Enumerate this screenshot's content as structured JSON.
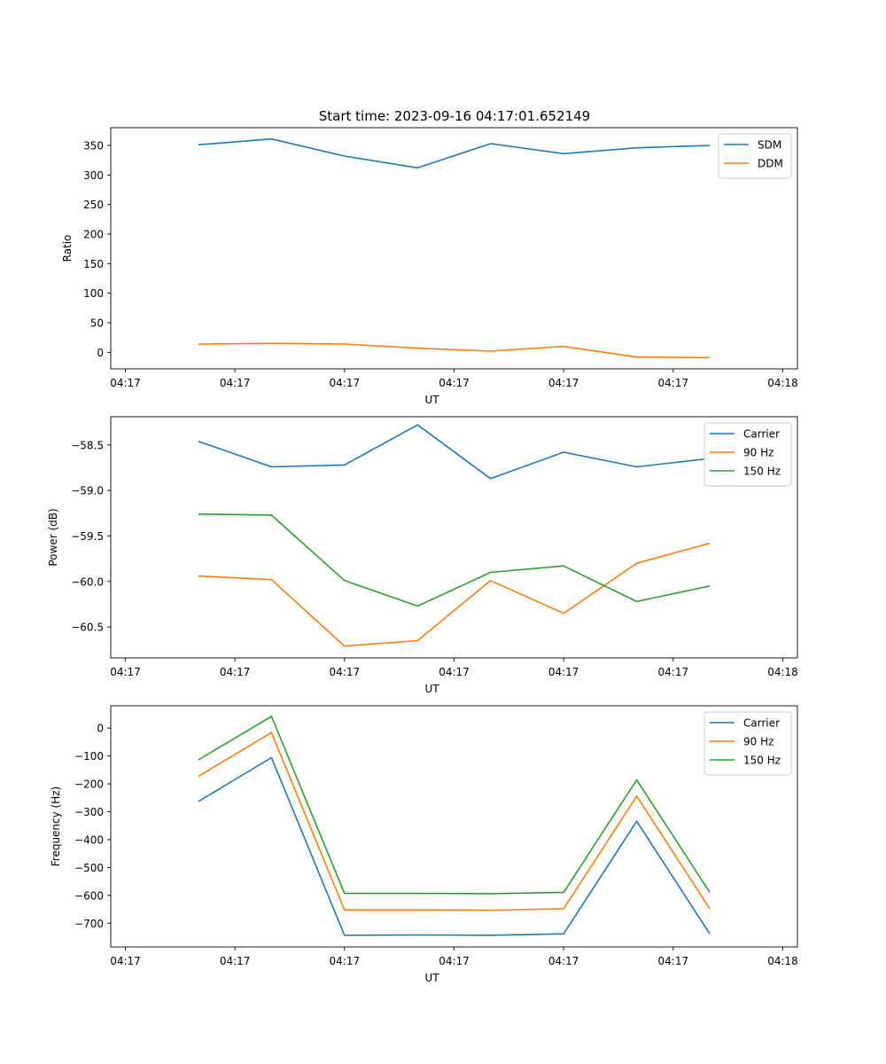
{
  "figure_title": "Start time: 2023-09-16 04:17:01.652149",
  "chart_data": [
    {
      "type": "line",
      "title": "Start time: 2023-09-16 04:17:01.652149",
      "xlabel": "UT",
      "ylabel": "Ratio",
      "x_index": [
        1,
        2,
        3,
        4,
        5,
        6,
        7,
        8
      ],
      "xlim": [
        -0.2,
        9.2
      ],
      "x_ticks": [
        0,
        1.5,
        3,
        4.5,
        6,
        7.5,
        9
      ],
      "x_tick_labels": [
        "04:17",
        "04:17",
        "04:17",
        "04:17",
        "04:17",
        "04:17",
        "04:18"
      ],
      "ylim": [
        -28,
        380
      ],
      "y_ticks": [
        0,
        50,
        100,
        150,
        200,
        250,
        300,
        350
      ],
      "y_tick_labels": [
        "0",
        "50",
        "100",
        "150",
        "200",
        "250",
        "300",
        "350"
      ],
      "grid": false,
      "legend_position": "top-right",
      "series": [
        {
          "name": "SDM",
          "color": "#1f77b4",
          "values": [
            351,
            361,
            332,
            312,
            353,
            336,
            346,
            350
          ]
        },
        {
          "name": "DDM",
          "color": "#ff7f0e",
          "values": [
            14,
            15,
            14,
            7,
            2,
            10,
            -8,
            -9
          ]
        }
      ]
    },
    {
      "type": "line",
      "title": "",
      "xlabel": "UT",
      "ylabel": "Power (dB)",
      "x_index": [
        1,
        2,
        3,
        4,
        5,
        6,
        7,
        8
      ],
      "xlim": [
        -0.2,
        9.2
      ],
      "x_ticks": [
        0,
        1.5,
        3,
        4.5,
        6,
        7.5,
        9
      ],
      "x_tick_labels": [
        "04:17",
        "04:17",
        "04:17",
        "04:17",
        "04:17",
        "04:17",
        "04:18"
      ],
      "ylim": [
        -60.84,
        -58.19
      ],
      "y_ticks": [
        -60.5,
        -60.0,
        -59.5,
        -59.0,
        -58.5
      ],
      "y_tick_labels": [
        "−60.5",
        "−60.0",
        "−59.5",
        "−59.0",
        "−58.5"
      ],
      "grid": false,
      "legend_position": "top-right",
      "series": [
        {
          "name": "Carrier",
          "color": "#1f77b4",
          "values": [
            -58.46,
            -58.74,
            -58.72,
            -58.28,
            -58.87,
            -58.58,
            -58.74,
            -58.65
          ]
        },
        {
          "name": "90 Hz",
          "color": "#ff7f0e",
          "values": [
            -59.94,
            -59.98,
            -60.71,
            -60.65,
            -59.99,
            -60.35,
            -59.8,
            -59.58
          ]
        },
        {
          "name": "150 Hz",
          "color": "#2ca02c",
          "values": [
            -59.26,
            -59.27,
            -59.99,
            -60.27,
            -59.9,
            -59.83,
            -60.22,
            -60.05
          ]
        }
      ]
    },
    {
      "type": "line",
      "title": "",
      "xlabel": "UT",
      "ylabel": "Frequency (Hz)",
      "x_index": [
        1,
        2,
        3,
        4,
        5,
        6,
        7,
        8
      ],
      "xlim": [
        -0.2,
        9.2
      ],
      "x_ticks": [
        0,
        1.5,
        3,
        4.5,
        6,
        7.5,
        9
      ],
      "x_tick_labels": [
        "04:17",
        "04:17",
        "04:17",
        "04:17",
        "04:17",
        "04:17",
        "04:18"
      ],
      "ylim": [
        -785,
        80
      ],
      "y_ticks": [
        -700,
        -600,
        -500,
        -400,
        -300,
        -200,
        -100,
        0
      ],
      "y_tick_labels": [
        "−700",
        "−600",
        "−500",
        "−400",
        "−300",
        "−200",
        "−100",
        "0"
      ],
      "grid": false,
      "legend_position": "top-right",
      "series": [
        {
          "name": "Carrier",
          "color": "#1f77b4",
          "values": [
            -263,
            -106,
            -743,
            -742,
            -743,
            -738,
            -334,
            -738
          ]
        },
        {
          "name": "90 Hz",
          "color": "#ff7f0e",
          "values": [
            -173,
            -16,
            -652,
            -652,
            -653,
            -648,
            -244,
            -648
          ]
        },
        {
          "name": "150 Hz",
          "color": "#2ca02c",
          "values": [
            -114,
            42,
            -593,
            -593,
            -594,
            -589,
            -186,
            -589
          ]
        }
      ]
    }
  ]
}
